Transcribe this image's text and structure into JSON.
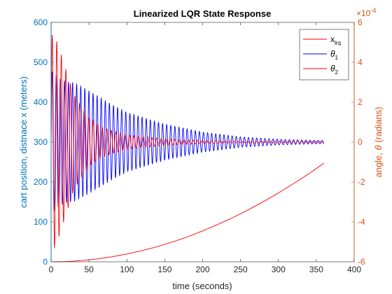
{
  "chart_data": {
    "type": "line",
    "title": "Linearized LQR State Response",
    "xlabel": "time (seconds)",
    "ylabel_left": "cart position, distnace x (meters)",
    "ylabel_right_prefix": "angle, ",
    "ylabel_right_symbol": "θ",
    "ylabel_right_suffix": " (radians)",
    "right_exponent_base": "×10",
    "right_exponent_power": "-4",
    "xlim": [
      0,
      400
    ],
    "ylim_left": [
      0,
      600
    ],
    "ylim_right": [
      -6,
      6
    ],
    "xticks": [
      0,
      50,
      100,
      150,
      200,
      250,
      300,
      350,
      400
    ],
    "yticks_left": [
      0,
      100,
      200,
      300,
      400,
      500,
      600
    ],
    "yticks_right": [
      -6,
      -4,
      -2,
      0,
      2,
      4,
      6
    ],
    "grid": false,
    "legend_position": "top-right",
    "colors": {
      "left_axis": "#0072BD",
      "right_axis": "#D95319",
      "x_lrq": "#ff0000",
      "theta1": "#0000ff",
      "theta2": "#ff0000"
    },
    "series": [
      {
        "name": "x_lrq",
        "legend_main": "x",
        "legend_sub": "lrq",
        "axis": "right",
        "x": [
          0,
          20,
          40,
          60,
          80,
          100,
          120,
          140,
          160,
          180,
          200,
          220,
          240,
          260,
          280,
          300,
          320,
          340,
          360
        ],
        "y": [
          -6,
          -5.99,
          -5.94,
          -5.86,
          -5.75,
          -5.61,
          -5.44,
          -5.24,
          -5.01,
          -4.75,
          -4.45,
          -4.13,
          -3.78,
          -3.4,
          -2.99,
          -2.55,
          -2.08,
          -1.59,
          -1.06
        ]
      },
      {
        "name": "theta1",
        "legend_main": "θ",
        "legend_sub": "1",
        "axis": "left",
        "center": 300,
        "x": [
          0,
          10,
          20,
          30,
          40,
          60,
          80,
          100,
          150,
          200,
          250,
          300,
          360
        ],
        "amplitude": [
          180,
          162,
          152,
          150,
          140,
          118,
          95,
          75,
          45,
          25,
          13,
          7,
          4
        ],
        "period": 5.4
      },
      {
        "name": "theta2",
        "legend_main": "θ",
        "legend_sub": "2",
        "axis": "left",
        "center": 300,
        "x": [
          0,
          5,
          10,
          20,
          30,
          50,
          70,
          100,
          150,
          200,
          250,
          300,
          360
        ],
        "amplitude": [
          270,
          265,
          240,
          180,
          120,
          60,
          35,
          18,
          8,
          4,
          2,
          2,
          2
        ],
        "period": 6.0
      }
    ]
  }
}
